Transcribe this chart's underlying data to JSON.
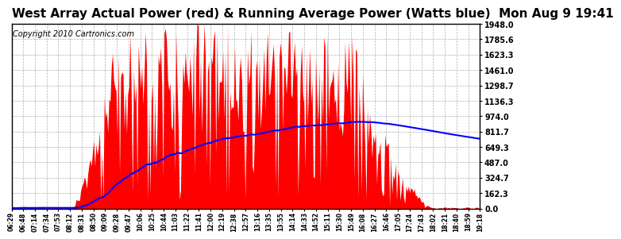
{
  "title": "West Array Actual Power (red) & Running Average Power (Watts blue)  Mon Aug 9 19:41",
  "copyright": "Copyright 2010 Cartronics.com",
  "y_max": 1948.0,
  "y_ticks": [
    0.0,
    162.3,
    324.7,
    487.0,
    649.3,
    811.7,
    974.0,
    1136.3,
    1298.7,
    1461.0,
    1623.3,
    1785.6,
    1948.0
  ],
  "background_color": "#ffffff",
  "plot_bg_color": "#ffffff",
  "bar_color": "red",
  "avg_color": "blue",
  "grid_color": "#b0b0b0",
  "title_fontsize": 11,
  "copyright_fontsize": 7,
  "x_labels": [
    "06:29",
    "06:48",
    "07:14",
    "07:34",
    "07:53",
    "08:12",
    "08:31",
    "08:50",
    "09:09",
    "09:28",
    "09:47",
    "10:06",
    "10:25",
    "10:44",
    "11:03",
    "11:22",
    "11:41",
    "12:00",
    "12:19",
    "12:38",
    "12:57",
    "13:16",
    "13:35",
    "13:55",
    "14:14",
    "14:33",
    "14:52",
    "15:11",
    "15:30",
    "15:49",
    "16:08",
    "16:27",
    "16:46",
    "17:05",
    "17:24",
    "17:43",
    "18:02",
    "18:21",
    "18:40",
    "18:59",
    "19:18"
  ]
}
